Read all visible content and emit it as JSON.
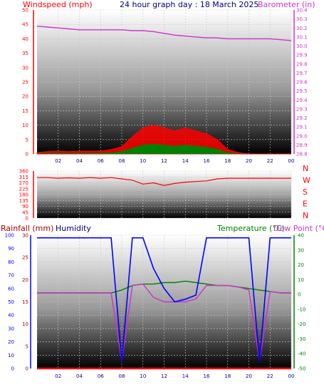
{
  "header": {
    "windspeed_label": "Windspeed (mph)",
    "graph_title": "24 hour graph day : 18 March 2025",
    "barometer_label": "Barometer (in)"
  },
  "lower_header": {
    "rainfall_label": "Rainfall (mm)",
    "humidity_label": "Humidity",
    "temperature_label": "Temperature (°C)",
    "dewpoint_label": "Dew Point (°C)"
  },
  "colors": {
    "wind": "#ff0000",
    "gust_fill": "#008000",
    "barometer": "#cc33cc",
    "direction": "#ff0000",
    "humidity": "#0000ff",
    "temperature": "#008000",
    "dewpoint": "#cc33cc",
    "rain": "#ff0000"
  },
  "chart_data": [
    {
      "type": "line",
      "title": "24 hour graph day : 18 March 2025",
      "x": [
        "00",
        "01",
        "02",
        "03",
        "04",
        "05",
        "06",
        "07",
        "08",
        "09",
        "10",
        "11",
        "12",
        "13",
        "14",
        "15",
        "16",
        "17",
        "18",
        "19",
        "20",
        "21",
        "22",
        "23",
        "00"
      ],
      "x_ticks": [
        "02",
        "04",
        "06",
        "08",
        "10",
        "12",
        "14",
        "16",
        "18",
        "20",
        "22",
        "00"
      ],
      "y_left": {
        "label": "Windspeed (mph)",
        "lim": [
          0,
          50
        ],
        "ticks": [
          0,
          5,
          10,
          15,
          20,
          25,
          30,
          35,
          40,
          45,
          50
        ]
      },
      "y_right": {
        "label": "Barometer (in)",
        "lim": [
          28.8,
          30.4
        ],
        "ticks": [
          28.8,
          28.9,
          29.0,
          29.1,
          29.2,
          29.3,
          29.4,
          29.5,
          29.6,
          29.7,
          29.8,
          29.9,
          30.0,
          30.1,
          30.2,
          30.3,
          30.4
        ]
      },
      "series": [
        {
          "name": "Windspeed (mph)",
          "axis": "left",
          "values": [
            0.5,
            0.8,
            1,
            0.8,
            1,
            1,
            1,
            1.5,
            2.5,
            6,
            9,
            10,
            9,
            8,
            9,
            8,
            7,
            5,
            1.5,
            0.5,
            0,
            0,
            0,
            0,
            0
          ]
        },
        {
          "name": "Barometer (in)",
          "axis": "right",
          "values": [
            30.22,
            30.21,
            30.2,
            30.19,
            30.18,
            30.18,
            30.18,
            30.18,
            30.18,
            30.17,
            30.17,
            30.16,
            30.14,
            30.12,
            30.11,
            30.1,
            30.09,
            30.09,
            30.08,
            30.08,
            30.08,
            30.08,
            30.08,
            30.07,
            30.06
          ]
        }
      ],
      "grid": true
    },
    {
      "type": "line",
      "x_ticks": [
        "02",
        "04",
        "06",
        "08",
        "10",
        "12",
        "14",
        "16",
        "18",
        "20",
        "22",
        "00"
      ],
      "y_left": {
        "lim": [
          0,
          360
        ],
        "ticks": [
          0,
          45,
          90,
          135,
          180,
          225,
          270,
          315,
          360
        ]
      },
      "y_right_labels": [
        "N",
        "W",
        "S",
        "E",
        "N"
      ],
      "series": [
        {
          "axis": "left",
          "values": [
            310,
            310,
            305,
            308,
            305,
            310,
            305,
            310,
            300,
            290,
            260,
            270,
            250,
            265,
            275,
            280,
            285,
            300,
            305,
            305,
            305,
            305,
            305,
            305,
            305
          ]
        }
      ],
      "grid": true
    },
    {
      "type": "line",
      "x_ticks": [
        "02",
        "04",
        "06",
        "08",
        "10",
        "12",
        "14",
        "16",
        "18",
        "20",
        "22",
        "00"
      ],
      "y_left_outer": {
        "label": "Rainfall (mm)",
        "lim": [
          0,
          100
        ],
        "ticks": [
          0,
          10,
          20,
          30,
          40,
          50,
          60,
          70,
          80,
          90,
          100
        ]
      },
      "y_left_inner": {
        "label": "Humidity",
        "lim": [
          0,
          30
        ],
        "ticks": [
          0,
          5,
          10,
          15,
          20,
          25,
          30
        ]
      },
      "y_right": {
        "label": "Temperature (°C)",
        "lim": [
          -50,
          40
        ],
        "ticks": [
          -50,
          -40,
          -30,
          -20,
          -10,
          0,
          10,
          20,
          30,
          40
        ]
      },
      "series": [
        {
          "name": "Humidity",
          "axis": "left_outer",
          "values": [
            98,
            98,
            98,
            98,
            98,
            98,
            98,
            98,
            5,
            98,
            98,
            75,
            60,
            50,
            52,
            55,
            98,
            98,
            98,
            98,
            98,
            5,
            98,
            98,
            98
          ]
        },
        {
          "name": "Temperature (°C)",
          "axis": "right",
          "values": [
            1,
            1,
            1,
            1,
            1,
            1,
            1,
            1,
            3,
            6,
            7,
            7,
            8,
            8,
            9,
            8,
            7,
            6,
            6,
            5,
            4,
            3,
            2,
            1,
            1
          ]
        },
        {
          "name": "Dew Point (°C)",
          "axis": "right",
          "values": [
            1,
            1,
            1,
            1,
            1,
            1,
            1,
            1,
            -45,
            6,
            7,
            -2,
            -5,
            -5,
            -5,
            -3,
            6,
            6,
            6,
            5,
            3,
            -45,
            2,
            1,
            1
          ]
        },
        {
          "name": "Rainfall (mm)",
          "axis": "left_outer",
          "values": [
            0,
            0,
            0,
            0,
            0,
            0,
            0,
            0,
            0,
            0,
            0,
            0,
            0,
            0,
            0,
            0,
            0,
            0,
            0,
            0,
            0,
            0,
            0,
            0,
            0
          ]
        }
      ],
      "grid": true
    }
  ]
}
